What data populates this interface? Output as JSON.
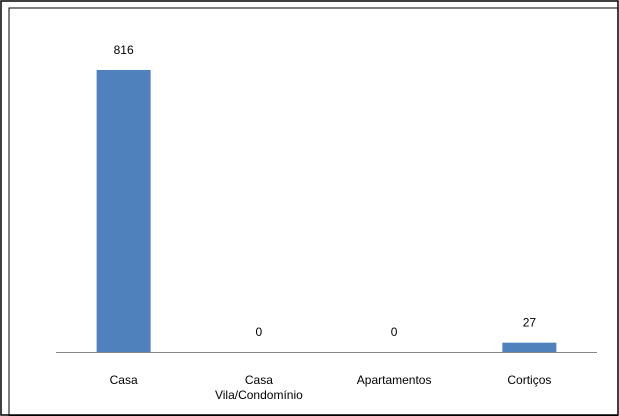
{
  "chart_data": {
    "type": "bar",
    "categories": [
      "Casa",
      "Casa Vila/Condomínio",
      "Apartamentos",
      "Cortiços"
    ],
    "category_label_lines": [
      [
        "Casa"
      ],
      [
        "Casa",
        "Vila/Condomínio"
      ],
      [
        "Apartamentos"
      ],
      [
        "Cortiços"
      ]
    ],
    "values": [
      816,
      0,
      0,
      27
    ],
    "data_labels": [
      "816",
      "0",
      "0",
      "27"
    ],
    "ylim": [
      0,
      900
    ],
    "grid": false,
    "legend": "none",
    "bar_color": "#4f81bd",
    "axis_color": "#868686"
  }
}
